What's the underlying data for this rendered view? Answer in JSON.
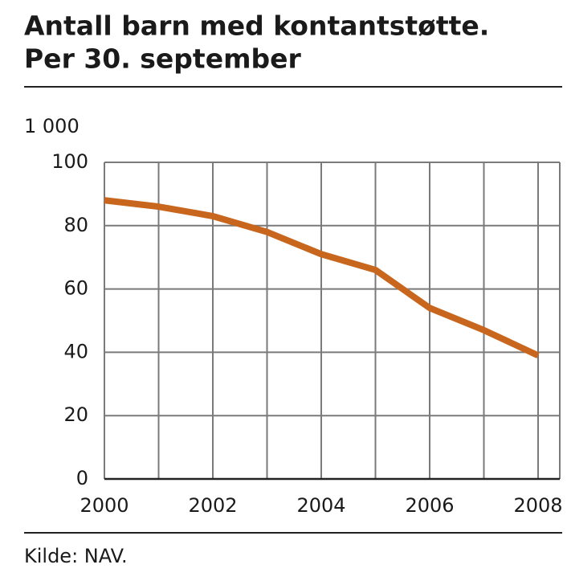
{
  "chart_data": {
    "type": "line",
    "title_lines": [
      "Antall barn med kontantstøtte.",
      "Per 30. september"
    ],
    "unit_label": "1 000",
    "source": "Kilde: NAV.",
    "x": [
      2000,
      2001,
      2002,
      2003,
      2004,
      2005,
      2006,
      2007,
      2008
    ],
    "series": [
      {
        "name": "Antall barn",
        "color": "#c8661e",
        "values": [
          88,
          86,
          83,
          78,
          71,
          66,
          54,
          47,
          39
        ]
      }
    ],
    "xlim": [
      2000,
      2008.4
    ],
    "xticks": [
      2000,
      2002,
      2004,
      2006,
      2008
    ],
    "ylim": [
      0,
      100
    ],
    "yticks": [
      0,
      20,
      40,
      60,
      80,
      100
    ],
    "grid": true,
    "legend": false
  }
}
